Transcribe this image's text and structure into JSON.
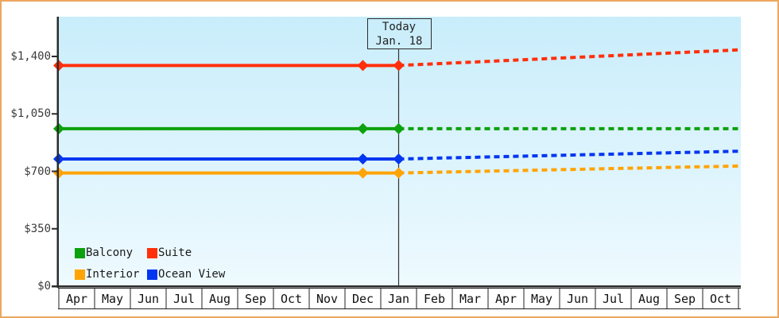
{
  "frame": {
    "border_color": "#eca75f",
    "background_color": "#ffffff"
  },
  "today_marker": {
    "line1": "Today",
    "line2": "Jan. 18"
  },
  "legend": {
    "position": "bottom-left-inside",
    "items": [
      {
        "label": "Balcony",
        "color": "#0da10d"
      },
      {
        "label": "Suite",
        "color": "#ff2f0b"
      },
      {
        "label": "Interior",
        "color": "#ffa405"
      },
      {
        "label": "Ocean View",
        "color": "#0336f0"
      }
    ]
  },
  "chart_data": {
    "type": "line",
    "title": "",
    "xlabel": "",
    "ylabel": "",
    "ylim": [
      0,
      1400
    ],
    "y_tick_labels": [
      "$0",
      "$350",
      "$700",
      "$1,050",
      "$1,400"
    ],
    "y_tick_values": [
      0,
      350,
      700,
      1050,
      1400
    ],
    "categories": [
      "Apr",
      "May",
      "Jun",
      "Jul",
      "Aug",
      "Sep",
      "Oct",
      "Nov",
      "Dec",
      "Jan",
      "Feb",
      "Mar",
      "Apr",
      "May",
      "Jun",
      "Jul",
      "Aug",
      "Sep",
      "Oct"
    ],
    "today_index": 9,
    "annotation": "Today Jan. 18",
    "grid": false,
    "legend_position": "bottom-left-inside",
    "style": {
      "bg_top": "#c9edfb",
      "bg_bottom": "#eefafe",
      "axis_color": "#2b2b2b",
      "today_line_color": "#333333",
      "solid_before_today": true,
      "dashed_after_today": true,
      "markers": "diamond at first point, Dec and Jan (today)"
    },
    "series": [
      {
        "name": "Suite",
        "color": "#ff2f0b",
        "history_value": 1345,
        "forecast_end_value": 1435,
        "values": [
          1345,
          1345,
          1345,
          1345,
          1345,
          1345,
          1345,
          1345,
          1345,
          1345,
          1355,
          1365,
          1375,
          1385,
          1395,
          1405,
          1415,
          1425,
          1435
        ]
      },
      {
        "name": "Balcony",
        "color": "#0da10d",
        "history_value": 960,
        "forecast_end_value": 960,
        "values": [
          960,
          960,
          960,
          960,
          960,
          960,
          960,
          960,
          960,
          960,
          960,
          960,
          960,
          960,
          960,
          960,
          960,
          960,
          960
        ]
      },
      {
        "name": "Ocean View",
        "color": "#0336f0",
        "history_value": 775,
        "forecast_end_value": 820,
        "values": [
          775,
          775,
          775,
          775,
          775,
          775,
          775,
          775,
          775,
          775,
          780,
          785,
          790,
          795,
          800,
          805,
          810,
          815,
          820
        ]
      },
      {
        "name": "Interior",
        "color": "#ffa405",
        "history_value": 690,
        "forecast_end_value": 730,
        "values": [
          690,
          690,
          690,
          690,
          690,
          690,
          690,
          690,
          690,
          690,
          694,
          699,
          703,
          708,
          712,
          717,
          721,
          726,
          730
        ]
      }
    ]
  }
}
